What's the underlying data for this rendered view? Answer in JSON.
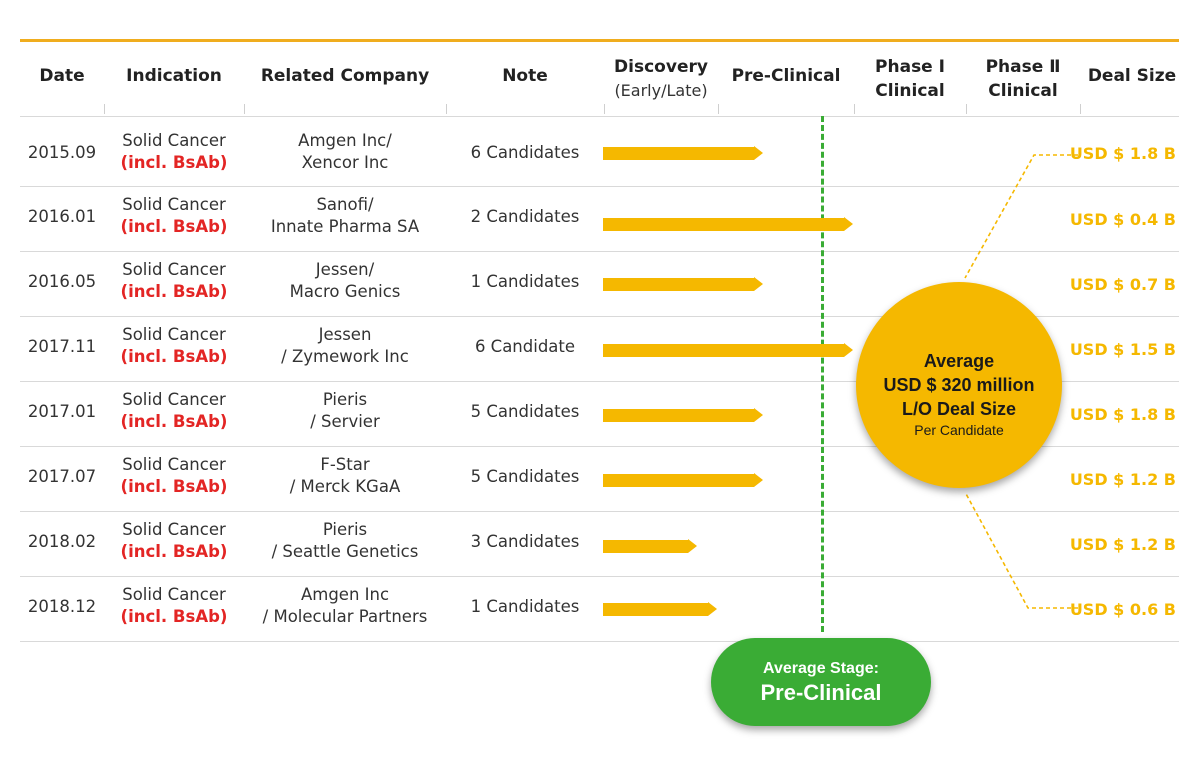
{
  "headers": {
    "date": "Date",
    "indication": "Indication",
    "company": "Related Company",
    "note": "Note",
    "discovery": "Discovery",
    "discovery_sub": "(Early/Late)",
    "preclinical": "Pre-Clinical",
    "phase1_a": "Phase Ⅰ",
    "phase1_b": "Clinical",
    "phase2_a": "Phase Ⅱ",
    "phase2_b": "Clinical",
    "deal": "Deal Size"
  },
  "rows": [
    {
      "date": "2015.09",
      "ind1": "Solid Cancer",
      "ind2": "(incl. BsAb)",
      "co1": "Amgen Inc/",
      "co2": "Xencor Inc",
      "note": "6 Candidates",
      "deal": "USD $ 1.8 B",
      "stage": "preclinical-mid"
    },
    {
      "date": "2016.01",
      "ind1": "Solid Cancer",
      "ind2": "(incl. BsAb)",
      "co1": "Sanofi/",
      "co2": "Innate Pharma SA",
      "note": "2 Candidates",
      "deal": "USD $ 0.4 B",
      "stage": "phase1-start"
    },
    {
      "date": "2016.05",
      "ind1": "Solid Cancer",
      "ind2": "(incl. BsAb)",
      "co1": "Jessen/",
      "co2": "Macro Genics",
      "note": "1 Candidates",
      "deal": "USD $ 0.7 B",
      "stage": "preclinical-mid"
    },
    {
      "date": "2017.11",
      "ind1": "Solid Cancer",
      "ind2": "(incl. BsAb)",
      "co1": "Jessen",
      "co2": "/ Zymework Inc",
      "note": "6 Candidate",
      "deal": "USD $ 1.5 B",
      "stage": "phase1-start"
    },
    {
      "date": "2017.01",
      "ind1": "Solid Cancer",
      "ind2": "(incl. BsAb)",
      "co1": "Pieris",
      "co2": "/ Servier",
      "note": "5 Candidates",
      "deal": "USD $ 1.8 B",
      "stage": "preclinical-mid"
    },
    {
      "date": "2017.07",
      "ind1": "Solid Cancer",
      "ind2": "(incl. BsAb)",
      "co1": "F-Star",
      "co2": "/ Merck KGaA",
      "note": "5 Candidates",
      "deal": "USD $ 1.2 B",
      "stage": "preclinical-mid"
    },
    {
      "date": "2018.02",
      "ind1": "Solid Cancer",
      "ind2": "(incl. BsAb)",
      "co1": "Pieris",
      "co2": "/ Seattle Genetics",
      "note": "3 Candidates",
      "deal": "USD $ 1.2 B",
      "stage": "discovery-late"
    },
    {
      "date": "2018.12",
      "ind1": "Solid Cancer",
      "ind2": "(incl. BsAb)",
      "co1": "Amgen Inc",
      "co2": "/ Molecular Partners",
      "note": "1 Candidates",
      "deal": "USD $ 0.6 B",
      "stage": "discovery-end"
    }
  ],
  "average": {
    "line1": "Average",
    "line2": "USD $ 320 million",
    "line3": "L/O Deal Size",
    "line4": "Per Candidate"
  },
  "stage_badge": {
    "line1": "Average Stage:",
    "line2": "Pre-Clinical"
  },
  "colors": {
    "accent": "#f5b800",
    "top_rule": "#f0ad1e",
    "bsab": "#e32524",
    "stage_green": "#3aac35",
    "guide_green": "#3aac35"
  }
}
